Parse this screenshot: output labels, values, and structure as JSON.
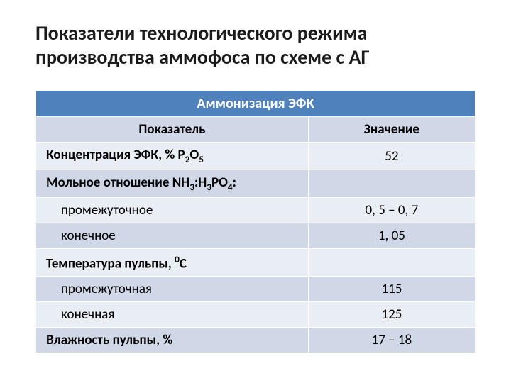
{
  "title": "Показатели технологического режима производства аммофоса по схеме с АГ",
  "table": {
    "section_header": "Аммонизация ЭФК",
    "columns": [
      "Показатель",
      "Значение"
    ],
    "rows": [
      {
        "label_html": "Концентрация ЭФК, % P<span class='sub'>2</span>O<span class='sub'>5</span>",
        "value": "52",
        "bold": true,
        "parity": "odd"
      },
      {
        "label_html": "Мольное отношение NH<span class='sub'>3</span>:H<span class='sub'>3</span>PO<span class='sub'>4</span>:",
        "value": "",
        "bold": true,
        "parity": "even"
      },
      {
        "label_html": "промежуточное",
        "value": "0, 5 – 0, 7",
        "bold": false,
        "indent": true,
        "parity": "odd"
      },
      {
        "label_html": "конечное",
        "value": "1, 05",
        "bold": false,
        "indent": true,
        "parity": "even"
      },
      {
        "label_html": "Температура пульпы, <span class='sup'>0</span>С",
        "value": "",
        "bold": true,
        "parity": "odd"
      },
      {
        "label_html": "промежуточная",
        "value": "115",
        "bold": false,
        "indent": true,
        "parity": "even"
      },
      {
        "label_html": "конечная",
        "value": "125",
        "bold": false,
        "indent": true,
        "parity": "odd"
      },
      {
        "label_html": "Влажность пульпы, %",
        "value": "17 – 18",
        "bold": true,
        "parity": "even"
      }
    ]
  },
  "colors": {
    "section_header_bg": "#4f81bd",
    "column_header_bg": "#d0d8e8",
    "row_odd_bg": "#e9edf4",
    "row_even_bg": "#d0d8e8",
    "border": "#ffffff",
    "title_color": "#1a1a1a"
  },
  "typography": {
    "title_fontsize": 28,
    "cell_fontsize": 19,
    "header_fontsize": 20
  }
}
